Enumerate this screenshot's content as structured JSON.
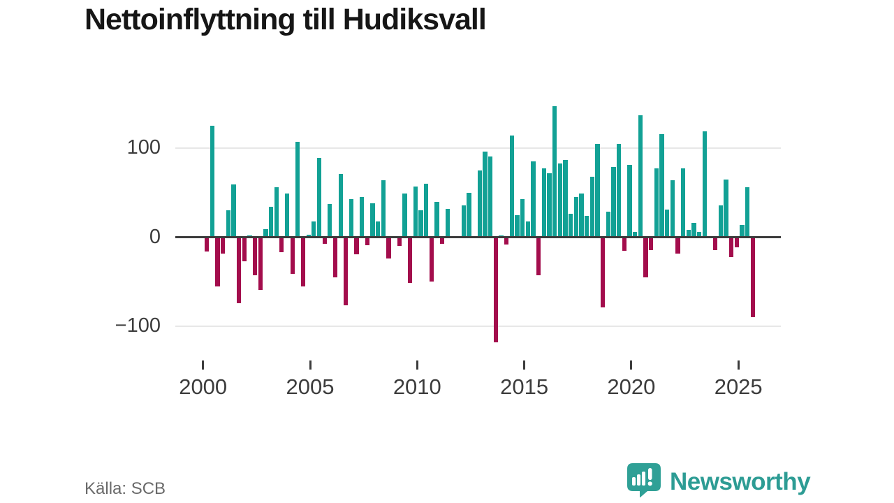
{
  "title": "Nettoinflyttning till Hudiksvall",
  "footer": {
    "source_label": "Källa: SCB"
  },
  "branding": {
    "wordmark": "Newsworthy",
    "logo_icon": "newsworthy-speech-bubble-chart-icon",
    "brand_color": "#2d9c94"
  },
  "chart_data": {
    "type": "bar",
    "title": "Nettoinflyttning till Hudiksvall",
    "source": "Källa: SCB",
    "positive_color": "#12a195",
    "negative_color": "#a30d4c",
    "grid": "horizontal",
    "legend": "none",
    "ylim": [
      -125,
      150
    ],
    "yticks": [
      100,
      0,
      -100
    ],
    "ytick_labels": [
      "100",
      "0",
      "−100"
    ],
    "xtick_labels": [
      "2000",
      "2005",
      "2010",
      "2015",
      "2020",
      "2025"
    ],
    "x": [
      "2000Q1",
      "2000Q2",
      "2000Q3",
      "2000Q4",
      "2001Q1",
      "2001Q2",
      "2001Q3",
      "2001Q4",
      "2002Q1",
      "2002Q2",
      "2002Q3",
      "2002Q4",
      "2003Q1",
      "2003Q2",
      "2003Q3",
      "2003Q4",
      "2004Q1",
      "2004Q2",
      "2004Q3",
      "2004Q4",
      "2005Q1",
      "2005Q2",
      "2005Q3",
      "2005Q4",
      "2006Q1",
      "2006Q2",
      "2006Q3",
      "2006Q4",
      "2007Q1",
      "2007Q2",
      "2007Q3",
      "2007Q4",
      "2008Q1",
      "2008Q2",
      "2008Q3",
      "2008Q4",
      "2009Q1",
      "2009Q2",
      "2009Q3",
      "2009Q4",
      "2010Q1",
      "2010Q2",
      "2010Q3",
      "2010Q4",
      "2011Q1",
      "2011Q2",
      "2011Q3",
      "2011Q4",
      "2012Q1",
      "2012Q2",
      "2012Q3",
      "2012Q4",
      "2013Q1",
      "2013Q2",
      "2013Q3",
      "2013Q4",
      "2014Q1",
      "2014Q2",
      "2014Q3",
      "2014Q4",
      "2015Q1",
      "2015Q2",
      "2015Q3",
      "2015Q4",
      "2016Q1",
      "2016Q2",
      "2016Q3",
      "2016Q4",
      "2017Q1",
      "2017Q2",
      "2017Q3",
      "2017Q4",
      "2018Q1",
      "2018Q2",
      "2018Q3",
      "2018Q4",
      "2019Q1",
      "2019Q2",
      "2019Q3",
      "2019Q4",
      "2020Q1",
      "2020Q2",
      "2020Q3",
      "2020Q4",
      "2021Q1",
      "2021Q2",
      "2021Q3",
      "2021Q4",
      "2022Q1",
      "2022Q2",
      "2022Q3",
      "2022Q4",
      "2023Q1",
      "2023Q2",
      "2023Q3",
      "2023Q4",
      "2024Q1",
      "2024Q2",
      "2024Q3",
      "2024Q4",
      "2025Q1",
      "2025Q2",
      "2025Q3"
    ],
    "values": [
      -15,
      125,
      -54,
      -17,
      30,
      59,
      -73,
      -26,
      2,
      -42,
      -58,
      9,
      34,
      56,
      -16,
      49,
      -40,
      107,
      -54,
      3,
      18,
      89,
      -6,
      37,
      -44,
      71,
      -75,
      43,
      -18,
      45,
      -8,
      38,
      18,
      64,
      -23,
      0,
      -9,
      49,
      -50,
      57,
      30,
      60,
      -49,
      40,
      -6,
      32,
      0,
      0,
      36,
      50,
      0,
      75,
      96,
      91,
      -117,
      2,
      -7,
      114,
      25,
      43,
      18,
      85,
      -42,
      77,
      72,
      147,
      83,
      87,
      26,
      45,
      49,
      24,
      68,
      105,
      -78,
      29,
      79,
      105,
      -14,
      81,
      6,
      137,
      -44,
      -13,
      77,
      116,
      31,
      64,
      -17,
      77,
      8,
      16,
      6,
      119,
      0,
      -13,
      36,
      65,
      -21,
      -10,
      14,
      56,
      -89
    ]
  }
}
